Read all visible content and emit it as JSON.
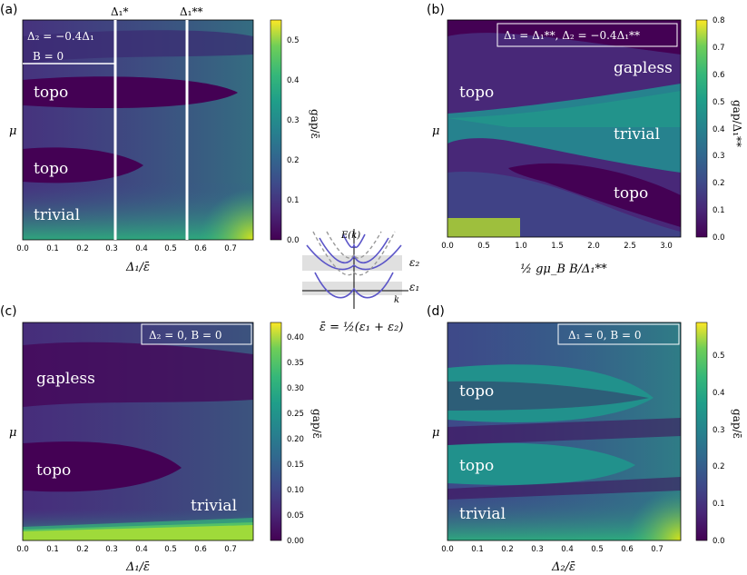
{
  "chart_data": [
    {
      "type": "heatmap",
      "panel_label": "(a)",
      "xlabel": "Δ₁/ε̄",
      "ylabel": "μ",
      "colorbar_label": "gap/ε̄",
      "xlim": [
        0,
        0.78
      ],
      "x_ticks": [
        "0.0",
        "0.1",
        "0.2",
        "0.3",
        "0.4",
        "0.5",
        "0.6",
        "0.7"
      ],
      "colorbar_range": [
        0,
        0.55
      ],
      "colorbar_ticks": [
        "0.0",
        "0.1",
        "0.2",
        "0.3",
        "0.4",
        "0.5"
      ],
      "annotations": [
        "Δ₂ = −0.4Δ₁",
        "B = 0"
      ],
      "vertical_lines": [
        {
          "label": "Δ₁*",
          "x": 0.31
        },
        {
          "label": "Δ₁**",
          "x": 0.55
        }
      ],
      "regions": [
        "topo",
        "topo",
        "trivial"
      ]
    },
    {
      "type": "heatmap",
      "panel_label": "(b)",
      "xlabel": "½ gμ_B B/Δ₁**",
      "ylabel": "μ",
      "colorbar_label": "gap/Δ₁**",
      "xlim": [
        0,
        3.2
      ],
      "x_ticks": [
        "0.0",
        "0.5",
        "1.0",
        "1.5",
        "2.0",
        "2.5",
        "3.0"
      ],
      "colorbar_range": [
        0,
        0.8
      ],
      "colorbar_ticks": [
        "0.0",
        "0.1",
        "0.2",
        "0.3",
        "0.4",
        "0.5",
        "0.6",
        "0.7",
        "0.8"
      ],
      "annotations": [
        "Δ₁ = Δ₁**,    Δ₂ = −0.4Δ₁**"
      ],
      "regions": [
        "gapless",
        "topo",
        "trivial",
        "topo"
      ]
    },
    {
      "type": "heatmap",
      "panel_label": "(c)",
      "xlabel": "Δ₁/ε̄",
      "ylabel": "μ",
      "colorbar_label": "gap/ε̄",
      "xlim": [
        0,
        0.78
      ],
      "x_ticks": [
        "0.0",
        "0.1",
        "0.2",
        "0.3",
        "0.4",
        "0.5",
        "0.6",
        "0.7"
      ],
      "colorbar_range": [
        0,
        0.43
      ],
      "colorbar_ticks": [
        "0.00",
        "0.05",
        "0.10",
        "0.15",
        "0.20",
        "0.25",
        "0.30",
        "0.35",
        "0.40"
      ],
      "annotations": [
        "Δ₂ = 0,    B = 0"
      ],
      "regions": [
        "gapless",
        "topo",
        "trivial"
      ]
    },
    {
      "type": "heatmap",
      "panel_label": "(d)",
      "xlabel": "Δ₂/ε̄",
      "ylabel": "μ",
      "colorbar_label": "gap/ε̄",
      "xlim": [
        0,
        0.78
      ],
      "x_ticks": [
        "0.0",
        "0.1",
        "0.2",
        "0.3",
        "0.4",
        "0.5",
        "0.6",
        "0.7"
      ],
      "colorbar_range": [
        0,
        0.59
      ],
      "colorbar_ticks": [
        "0.0",
        "0.1",
        "0.2",
        "0.3",
        "0.4",
        "0.5"
      ],
      "annotations": [
        "Δ₁ = 0,    B = 0"
      ],
      "regions": [
        "topo",
        "topo",
        "trivial"
      ]
    }
  ],
  "inset": {
    "ylabel": "E(k)",
    "xlabel": "k",
    "level_labels": [
      "ε₂",
      "ε₁"
    ],
    "caption": "ε̄ = ½(ε₁ + ε₂)"
  },
  "colors": {
    "low": "#440154",
    "mid": "#21918c",
    "high": "#fde725",
    "inset_solid": "#5b55c8",
    "inset_dashed": "#999999"
  }
}
